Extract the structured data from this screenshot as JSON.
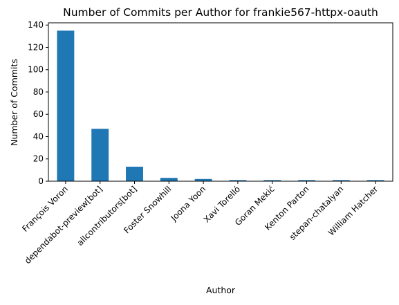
{
  "chart_data": {
    "type": "bar",
    "title": "Number of Commits per Author for frankie567-httpx-oauth",
    "xlabel": "Author",
    "ylabel": "Number of Commits",
    "categories": [
      "François Voron",
      "dependabot-preview[bot]",
      "allcontributors[bot]",
      "Foster Snowhill",
      "Joona Yoon",
      "Xavi Torelló",
      "Goran Mekić",
      "Kenton Parton",
      "stepan-chatalyan",
      "William Hatcher"
    ],
    "values": [
      135,
      47,
      13,
      3,
      2,
      1,
      1,
      1,
      1,
      1
    ],
    "ylim": [
      0,
      142
    ],
    "yticks": [
      0,
      20,
      40,
      60,
      80,
      100,
      120,
      140
    ],
    "bar_color": "#1f77b4",
    "grid": false,
    "legend": "none"
  }
}
